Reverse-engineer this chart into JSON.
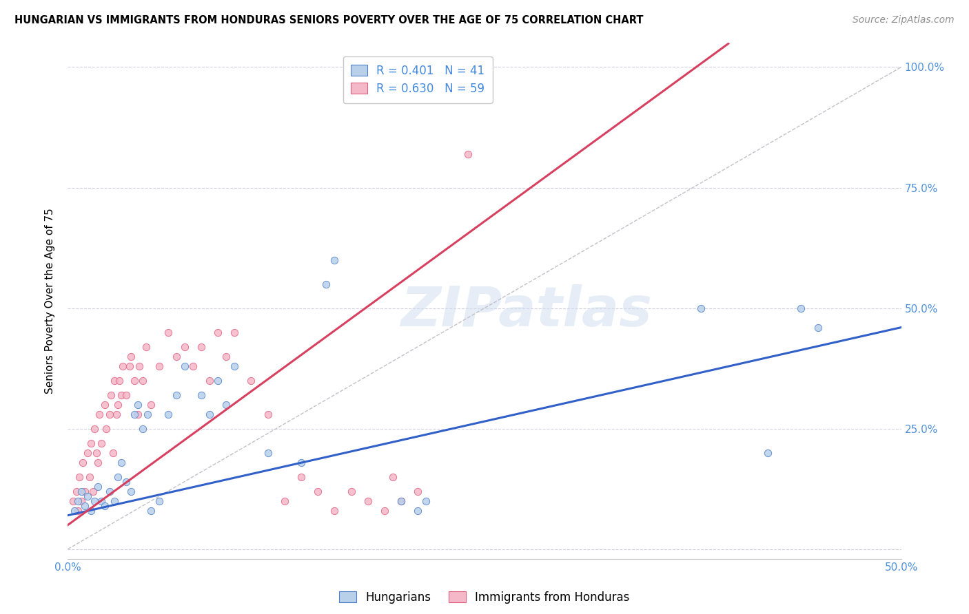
{
  "title": "HUNGARIAN VS IMMIGRANTS FROM HONDURAS SENIORS POVERTY OVER THE AGE OF 75 CORRELATION CHART",
  "source": "Source: ZipAtlas.com",
  "ylabel": "Seniors Poverty Over the Age of 75",
  "xlim": [
    0.0,
    0.5
  ],
  "ylim": [
    -0.02,
    1.05
  ],
  "xticks": [
    0.0,
    0.1,
    0.2,
    0.3,
    0.4,
    0.5
  ],
  "xticklabels": [
    "0.0%",
    "",
    "",
    "",
    "",
    "50.0%"
  ],
  "yticks": [
    0.0,
    0.25,
    0.5,
    0.75,
    1.0
  ],
  "yticklabels": [
    "",
    "25.0%",
    "50.0%",
    "75.0%",
    "100.0%"
  ],
  "legend1_label": "R = 0.401   N = 41",
  "legend2_label": "R = 0.630   N = 59",
  "color_hungarian": "#b8d0ea",
  "color_honduras": "#f5b8c8",
  "color_edge_hungarian": "#5080c8",
  "color_edge_honduras": "#e06080",
  "color_line_hungarian": "#3060c8",
  "color_line_honduras": "#d84060",
  "color_diagonal": "#c0c0c8",
  "watermark_text": "ZIPatlas",
  "hung_line_x0": 0.0,
  "hung_line_y0": 0.07,
  "hung_line_x1": 0.5,
  "hung_line_y1": 0.46,
  "hond_line_x0": 0.0,
  "hond_line_y0": 0.05,
  "hond_line_x1": 0.25,
  "hond_line_y1": 0.68,
  "hungarian_x": [
    0.004,
    0.006,
    0.008,
    0.01,
    0.012,
    0.014,
    0.016,
    0.018,
    0.02,
    0.022,
    0.025,
    0.028,
    0.03,
    0.032,
    0.035,
    0.038,
    0.04,
    0.042,
    0.045,
    0.048,
    0.05,
    0.055,
    0.06,
    0.065,
    0.07,
    0.08,
    0.085,
    0.09,
    0.095,
    0.1,
    0.12,
    0.14,
    0.155,
    0.16,
    0.2,
    0.21,
    0.215,
    0.38,
    0.42,
    0.44,
    0.45
  ],
  "hungarian_y": [
    0.08,
    0.1,
    0.12,
    0.09,
    0.11,
    0.08,
    0.1,
    0.13,
    0.1,
    0.09,
    0.12,
    0.1,
    0.15,
    0.18,
    0.14,
    0.12,
    0.28,
    0.3,
    0.25,
    0.28,
    0.08,
    0.1,
    0.28,
    0.32,
    0.38,
    0.32,
    0.28,
    0.35,
    0.3,
    0.38,
    0.2,
    0.18,
    0.55,
    0.6,
    0.1,
    0.08,
    0.1,
    0.5,
    0.2,
    0.5,
    0.46
  ],
  "honduras_x": [
    0.003,
    0.005,
    0.006,
    0.007,
    0.008,
    0.009,
    0.01,
    0.012,
    0.013,
    0.014,
    0.015,
    0.016,
    0.017,
    0.018,
    0.019,
    0.02,
    0.022,
    0.023,
    0.025,
    0.026,
    0.027,
    0.028,
    0.029,
    0.03,
    0.031,
    0.032,
    0.033,
    0.035,
    0.037,
    0.038,
    0.04,
    0.042,
    0.043,
    0.045,
    0.047,
    0.05,
    0.055,
    0.06,
    0.065,
    0.07,
    0.075,
    0.08,
    0.085,
    0.09,
    0.095,
    0.1,
    0.11,
    0.12,
    0.13,
    0.14,
    0.15,
    0.16,
    0.17,
    0.18,
    0.19,
    0.195,
    0.2,
    0.21,
    0.24
  ],
  "honduras_y": [
    0.1,
    0.12,
    0.08,
    0.15,
    0.1,
    0.18,
    0.12,
    0.2,
    0.15,
    0.22,
    0.12,
    0.25,
    0.2,
    0.18,
    0.28,
    0.22,
    0.3,
    0.25,
    0.28,
    0.32,
    0.2,
    0.35,
    0.28,
    0.3,
    0.35,
    0.32,
    0.38,
    0.32,
    0.38,
    0.4,
    0.35,
    0.28,
    0.38,
    0.35,
    0.42,
    0.3,
    0.38,
    0.45,
    0.4,
    0.42,
    0.38,
    0.42,
    0.35,
    0.45,
    0.4,
    0.45,
    0.35,
    0.28,
    0.1,
    0.15,
    0.12,
    0.08,
    0.12,
    0.1,
    0.08,
    0.15,
    0.1,
    0.12,
    0.82
  ]
}
